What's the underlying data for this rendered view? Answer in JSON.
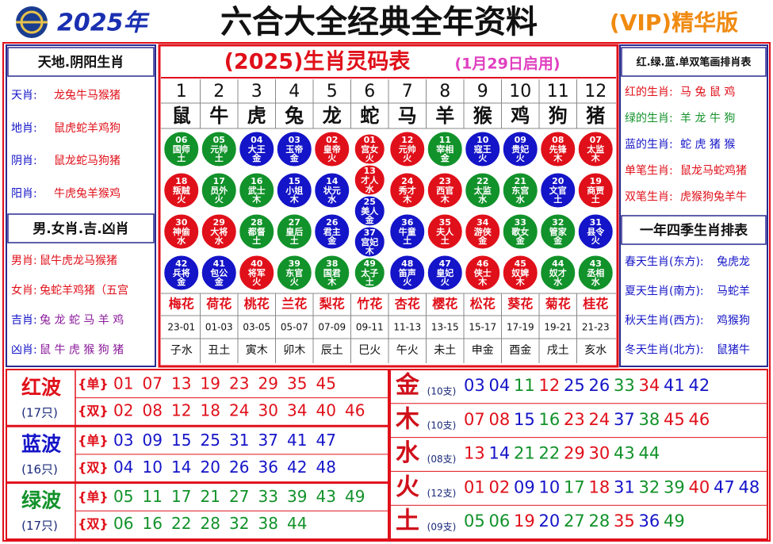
{
  "header": {
    "year": "2025年",
    "title": "六合大全经典全年资料",
    "badge": "(VIP)精华版"
  },
  "left_panels": [
    {
      "title": "天地.阴阳生肖",
      "rows": [
        {
          "label": "天肖:",
          "value": "龙兔牛马猴猪"
        },
        {
          "label": "地肖:",
          "value": "鼠虎蛇羊鸡狗"
        },
        {
          "label": "阴肖:",
          "value": "鼠龙蛇马狗猪"
        },
        {
          "label": "阳肖:",
          "value": "牛虎兔羊猴鸡"
        }
      ]
    },
    {
      "title": "男.女肖.吉.凶肖",
      "rows": [
        {
          "label": "男肖:",
          "value": "鼠牛虎龙马猴猪"
        },
        {
          "label": "女肖:",
          "value": "兔蛇羊鸡猪（五宫"
        },
        {
          "label": "吉肖:",
          "value": "兔 龙 蛇 马 羊 鸡"
        },
        {
          "label": "凶肖:",
          "value": "鼠 牛 虎 猴 狗 猪"
        }
      ]
    }
  ],
  "table": {
    "title": "(2025)生肖灵码表",
    "subtitle": "(1月29日启用)",
    "columns": [
      {
        "index": 1,
        "zodiac": "鼠",
        "balls": [
          {
            "number": "06",
            "name": "国师",
            "element": "土"
          },
          {
            "number": "18",
            "name": "叛贼",
            "element": "火"
          },
          {
            "number": "30",
            "name": "神偷",
            "element": "水"
          },
          {
            "number": "42",
            "name": "兵将",
            "element": "金"
          }
        ],
        "flower": "梅花",
        "hours": "23-01",
        "branch": "子水"
      },
      {
        "index": 2,
        "zodiac": "牛",
        "balls": [
          {
            "number": "05",
            "name": "元帅",
            "element": "土"
          },
          {
            "number": "17",
            "name": "员外",
            "element": "火"
          },
          {
            "number": "29",
            "name": "大将",
            "element": "水"
          },
          {
            "number": "41",
            "name": "包公",
            "element": "金"
          }
        ],
        "flower": "荷花",
        "hours": "01-03",
        "branch": "丑土"
      },
      {
        "index": 3,
        "zodiac": "虎",
        "balls": [
          {
            "number": "04",
            "name": "大王",
            "element": "金"
          },
          {
            "number": "16",
            "name": "武士",
            "element": "木"
          },
          {
            "number": "28",
            "name": "都督",
            "element": "土"
          },
          {
            "number": "40",
            "name": "将军",
            "element": "火"
          }
        ],
        "flower": "桃花",
        "hours": "03-05",
        "branch": "寅木"
      },
      {
        "index": 4,
        "zodiac": "兔",
        "balls": [
          {
            "number": "03",
            "name": "玉帝",
            "element": "金"
          },
          {
            "number": "15",
            "name": "小姐",
            "element": "木"
          },
          {
            "number": "27",
            "name": "皇后",
            "element": "土"
          },
          {
            "number": "39",
            "name": "东官",
            "element": "火"
          }
        ],
        "flower": "兰花",
        "hours": "05-07",
        "branch": "卯木"
      },
      {
        "index": 5,
        "zodiac": "龙",
        "balls": [
          {
            "number": "02",
            "name": "皇帝",
            "element": "火"
          },
          {
            "number": "14",
            "name": "状元",
            "element": "水"
          },
          {
            "number": "26",
            "name": "君主",
            "element": "金"
          },
          {
            "number": "38",
            "name": "国君",
            "element": "木"
          }
        ],
        "flower": "梨花",
        "hours": "07-09",
        "branch": "辰土"
      },
      {
        "index": 6,
        "zodiac": "蛇",
        "balls": [
          {
            "number": "01",
            "name": "宫女",
            "element": "火"
          },
          {
            "number": "13",
            "name": "才人",
            "element": "水"
          },
          {
            "number": "25",
            "name": "美人",
            "element": "金"
          },
          {
            "number": "37",
            "name": "宫妃",
            "element": "木"
          },
          {
            "number": "49",
            "name": "太子",
            "element": "土"
          }
        ],
        "flower": "竹花",
        "hours": "09-11",
        "branch": "巳火"
      },
      {
        "index": 7,
        "zodiac": "马",
        "balls": [
          {
            "number": "12",
            "name": "元帅",
            "element": "火"
          },
          {
            "number": "24",
            "name": "秀才",
            "element": "木"
          },
          {
            "number": "36",
            "name": "牛童",
            "element": "土"
          },
          {
            "number": "48",
            "name": "笛声",
            "element": "火"
          }
        ],
        "flower": "杏花",
        "hours": "11-13",
        "branch": "午火"
      },
      {
        "index": 8,
        "zodiac": "羊",
        "balls": [
          {
            "number": "11",
            "name": "宰相",
            "element": "金"
          },
          {
            "number": "23",
            "name": "西官",
            "element": "木"
          },
          {
            "number": "35",
            "name": "夫人",
            "element": "土"
          },
          {
            "number": "47",
            "name": "皇妃",
            "element": "火"
          }
        ],
        "flower": "樱花",
        "hours": "13-15",
        "branch": "未土"
      },
      {
        "index": 9,
        "zodiac": "猴",
        "balls": [
          {
            "number": "10",
            "name": "寇王",
            "element": "火"
          },
          {
            "number": "22",
            "name": "太监",
            "element": "水"
          },
          {
            "number": "34",
            "name": "游侠",
            "element": "金"
          },
          {
            "number": "46",
            "name": "侠士",
            "element": "木"
          }
        ],
        "flower": "松花",
        "hours": "15-17",
        "branch": "申金"
      },
      {
        "index": 10,
        "zodiac": "鸡",
        "balls": [
          {
            "number": "09",
            "name": "贵妃",
            "element": "火"
          },
          {
            "number": "21",
            "name": "东宫",
            "element": "水"
          },
          {
            "number": "33",
            "name": "歌女",
            "element": "金"
          },
          {
            "number": "45",
            "name": "奴婢",
            "element": "木"
          }
        ],
        "flower": "葵花",
        "hours": "17-19",
        "branch": "酉金"
      },
      {
        "index": 11,
        "zodiac": "狗",
        "balls": [
          {
            "number": "08",
            "name": "先锋",
            "element": "木"
          },
          {
            "number": "20",
            "name": "文官",
            "element": "土"
          },
          {
            "number": "32",
            "name": "管家",
            "element": "金"
          },
          {
            "number": "44",
            "name": "奴才",
            "element": "水"
          }
        ],
        "flower": "菊花",
        "hours": "19-21",
        "branch": "戌土"
      },
      {
        "index": 12,
        "zodiac": "猪",
        "balls": [
          {
            "number": "07",
            "name": "太监",
            "element": "木"
          },
          {
            "number": "19",
            "name": "商贾",
            "element": "土"
          },
          {
            "number": "31",
            "name": "县令",
            "element": "火"
          },
          {
            "number": "43",
            "name": "丞相",
            "element": "水"
          }
        ],
        "flower": "桂花",
        "hours": "21-23",
        "branch": "亥水"
      }
    ]
  },
  "right_panels": [
    {
      "title": "红.绿.蓝.单双笔画排肖表",
      "rows": [
        {
          "label": "红的生肖:",
          "value": "马 兔 鼠 鸡"
        },
        {
          "label": "绿的生肖:",
          "value": "羊 龙 牛 狗"
        },
        {
          "label": "蓝的生肖:",
          "value": "蛇 虎 猪 猴"
        },
        {
          "label": "单笔生肖:",
          "value": "鼠龙马蛇鸡猪"
        },
        {
          "label": "双笔生肖:",
          "value": "虎猴狗兔羊牛"
        }
      ]
    },
    {
      "title": "一年四季生肖排表",
      "rows": [
        {
          "label": "春天生肖(东方):",
          "value": "兔虎龙"
        },
        {
          "label": "夏天生肖(南方):",
          "value": "马蛇羊"
        },
        {
          "label": "秋天生肖(西方):",
          "value": "鸡猴狗"
        },
        {
          "label": "冬天生肖(北方):",
          "value": "鼠猪牛"
        }
      ]
    }
  ],
  "waves": [
    {
      "name": "红波",
      "count": "(17只)",
      "color": "#e0101a",
      "rows": [
        {
          "label": "{单}",
          "numbers": [
            "01",
            "07",
            "13",
            "19",
            "23",
            "29",
            "35",
            "45"
          ]
        },
        {
          "label": "{双}",
          "numbers": [
            "02",
            "08",
            "12",
            "18",
            "24",
            "30",
            "34",
            "40",
            "46"
          ]
        }
      ]
    },
    {
      "name": "蓝波",
      "count": "(16只)",
      "color": "#1414c8",
      "rows": [
        {
          "label": "{单}",
          "numbers": [
            "03",
            "09",
            "15",
            "25",
            "31",
            "37",
            "41",
            "47"
          ]
        },
        {
          "label": "{双}",
          "numbers": [
            "04",
            "10",
            "14",
            "20",
            "26",
            "36",
            "42",
            "48"
          ]
        }
      ]
    },
    {
      "name": "绿波",
      "count": "(17只)",
      "color": "#12922a",
      "rows": [
        {
          "label": "{单}",
          "numbers": [
            "05",
            "11",
            "17",
            "21",
            "27",
            "33",
            "39",
            "43",
            "49"
          ]
        },
        {
          "label": "{双}",
          "numbers": [
            "06",
            "16",
            "22",
            "28",
            "32",
            "38",
            "44"
          ]
        }
      ]
    }
  ],
  "elements": [
    {
      "name": "金",
      "count": "(10支)",
      "numbers": [
        "03",
        "04",
        "11",
        "12",
        "25",
        "26",
        "33",
        "34",
        "41",
        "42"
      ]
    },
    {
      "name": "木",
      "count": "(10支)",
      "numbers": [
        "07",
        "08",
        "15",
        "16",
        "23",
        "24",
        "37",
        "38",
        "45",
        "46"
      ]
    },
    {
      "name": "水",
      "count": "(08支)",
      "numbers": [
        "13",
        "14",
        "21",
        "22",
        "29",
        "30",
        "43",
        "44"
      ]
    },
    {
      "name": "火",
      "count": "(12支)",
      "numbers": [
        "01",
        "02",
        "09",
        "10",
        "17",
        "18",
        "31",
        "32",
        "39",
        "40",
        "47",
        "48"
      ]
    },
    {
      "name": "土",
      "count": "(09支)",
      "numbers": [
        "05",
        "06",
        "19",
        "20",
        "27",
        "28",
        "35",
        "36",
        "49"
      ]
    }
  ]
}
